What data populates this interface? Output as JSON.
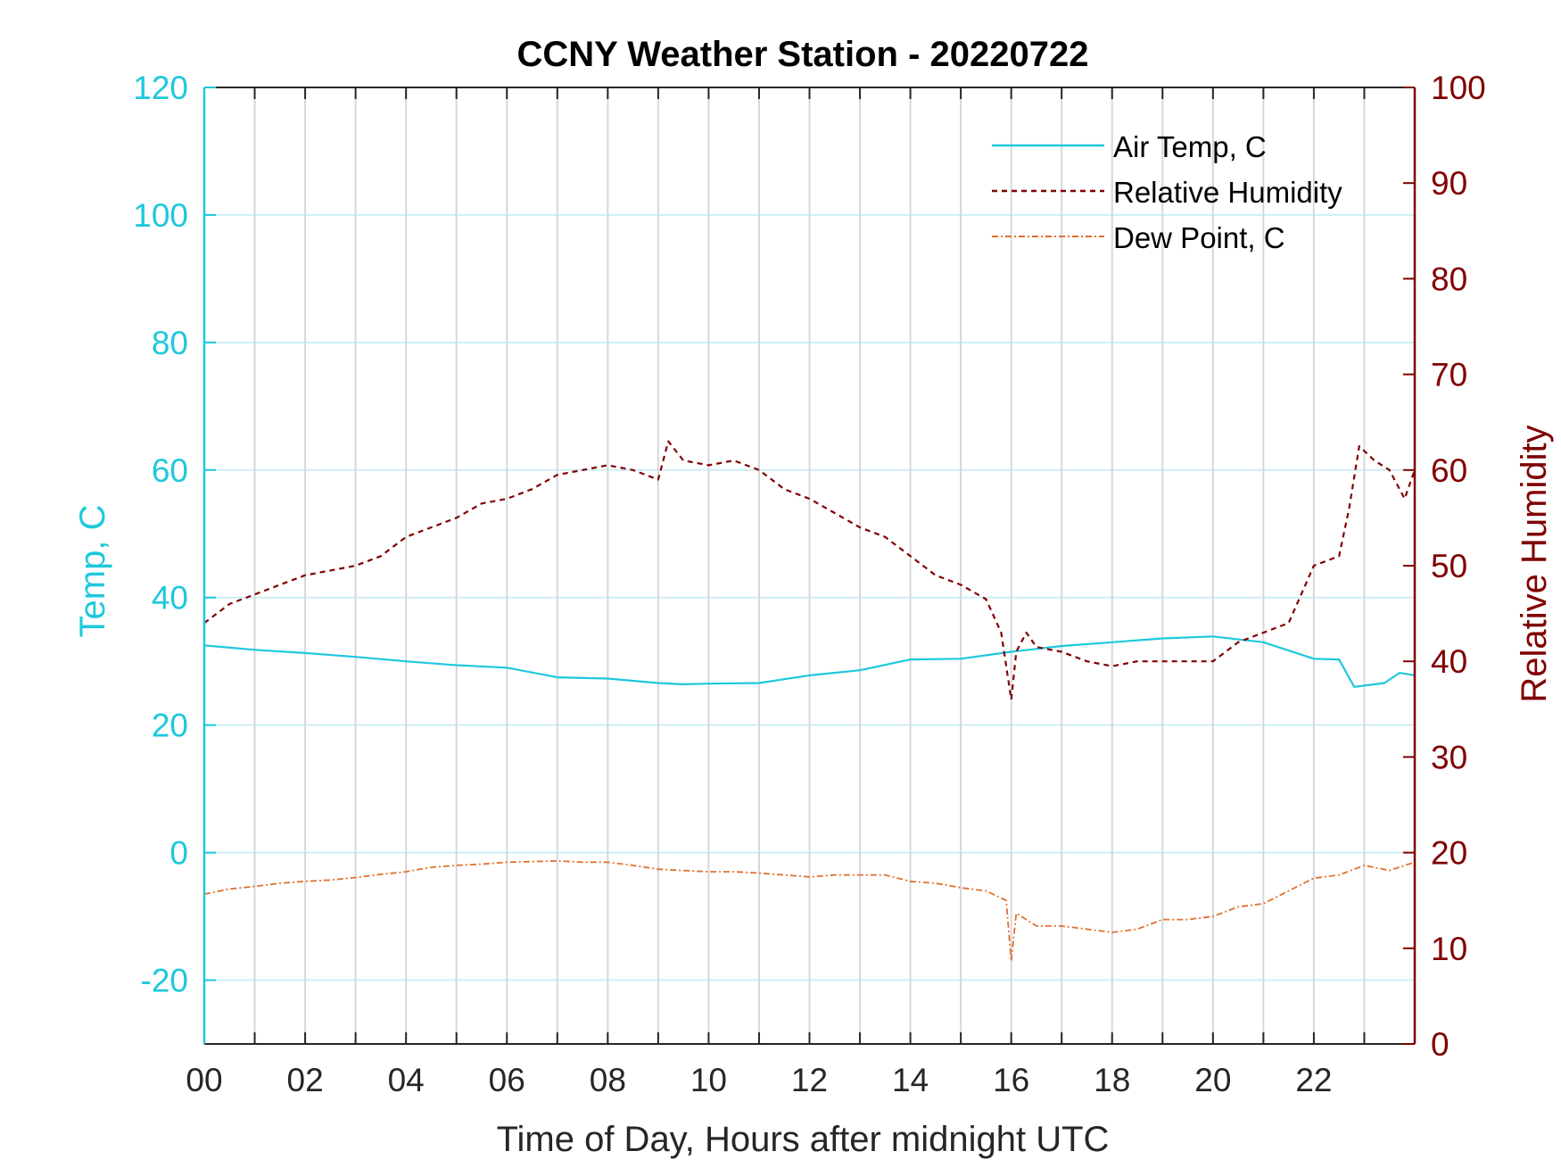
{
  "chart_data": {
    "type": "line",
    "title": "CCNY Weather Station - 20220722",
    "xlabel": "Time of Day, Hours after midnight UTC",
    "ylabel_left": "Temp, C",
    "ylabel_right": "Relative Humidity",
    "xlim": [
      0,
      24
    ],
    "ylim_left": [
      -30,
      120
    ],
    "ylim_right": [
      0,
      100
    ],
    "x_ticks": [
      0,
      2,
      4,
      6,
      8,
      10,
      12,
      14,
      16,
      18,
      20,
      22
    ],
    "x_tick_labels": [
      "00",
      "02",
      "04",
      "06",
      "08",
      "10",
      "12",
      "14",
      "16",
      "18",
      "20",
      "22"
    ],
    "y_left_ticks": [
      -20,
      0,
      20,
      40,
      60,
      80,
      100,
      120
    ],
    "y_left_tick_labels": [
      "-20",
      "0",
      "20",
      "40",
      "60",
      "80",
      "100",
      "120"
    ],
    "y_right_ticks": [
      0,
      10,
      20,
      30,
      40,
      50,
      60,
      70,
      80,
      90,
      100
    ],
    "y_right_tick_labels": [
      "0",
      "10",
      "20",
      "30",
      "40",
      "50",
      "60",
      "70",
      "80",
      "90",
      "100"
    ],
    "grid": true,
    "legend_position": "top-right",
    "colors": {
      "temp_axis": "#1ec8dc",
      "rh_axis": "#800000",
      "air_temp": "#1ec8dc",
      "rel_humidity": "#800000",
      "dew_point": "#e07030",
      "v_grid": "#d4d8dc",
      "h_grid": "#cdeff4"
    },
    "series": [
      {
        "name": "Air Temp, C",
        "axis": "left",
        "style": "solid",
        "x": [
          0,
          1,
          2,
          3,
          4,
          5,
          6,
          7,
          8,
          9,
          9.5,
          10,
          11,
          12,
          13,
          14,
          15,
          16,
          17,
          18,
          19,
          20,
          21,
          22,
          22.5,
          22.8,
          23,
          23.4,
          23.7,
          24
        ],
        "values": [
          32.5,
          31.8,
          31.3,
          30.7,
          30.0,
          29.4,
          29.0,
          27.5,
          27.3,
          26.6,
          26.4,
          26.5,
          26.6,
          27.8,
          28.6,
          30.3,
          30.4,
          31.5,
          32.4,
          33.0,
          33.6,
          33.9,
          33.0,
          30.4,
          30.3,
          26.0,
          26.2,
          26.6,
          28.2,
          27.8
        ]
      },
      {
        "name": "Relative Humidity",
        "axis": "right",
        "style": "dashed",
        "x": [
          0,
          0.5,
          1,
          1.5,
          2,
          2.5,
          3,
          3.5,
          4,
          4.5,
          5,
          5.5,
          6,
          6.5,
          7,
          7.5,
          8,
          8.5,
          9,
          9.2,
          9.5,
          10,
          10.5,
          11,
          11.5,
          12,
          12.5,
          13,
          13.5,
          14,
          14.5,
          15,
          15.5,
          15.8,
          16,
          16.1,
          16.3,
          16.5,
          17,
          17.5,
          18,
          18.5,
          19,
          19.5,
          20,
          20.5,
          21,
          21.5,
          22,
          22.5,
          22.7,
          22.9,
          23.2,
          23.5,
          23.8,
          24
        ],
        "values": [
          44,
          46,
          47,
          48,
          49,
          49.5,
          50,
          51,
          53,
          54,
          55,
          56.5,
          57,
          58,
          59.5,
          60,
          60.5,
          60,
          59,
          63,
          61,
          60.5,
          61,
          60,
          58,
          57,
          55.5,
          54,
          53,
          51,
          49,
          48,
          46.5,
          43,
          36,
          41,
          43,
          41.5,
          41,
          40,
          39.5,
          40,
          40,
          40,
          40,
          42,
          43,
          44,
          50,
          51,
          56,
          62.5,
          61,
          60,
          57,
          60
        ]
      },
      {
        "name": "Dew Point, C",
        "axis": "left",
        "style": "dashdot",
        "x": [
          0,
          0.5,
          1,
          1.5,
          2,
          2.5,
          3,
          3.5,
          4,
          4.5,
          5,
          5.5,
          6,
          6.5,
          7,
          7.5,
          8,
          8.5,
          9,
          9.5,
          10,
          10.5,
          11,
          11.5,
          12,
          12.5,
          13,
          13.5,
          14,
          14.5,
          15,
          15.5,
          15.9,
          16,
          16.1,
          16.3,
          16.5,
          17,
          17.5,
          18,
          18.5,
          19,
          19.5,
          20,
          20.5,
          21,
          21.5,
          22,
          22.5,
          23,
          23.5,
          24
        ],
        "values": [
          -6.5,
          -5.7,
          -5.3,
          -4.8,
          -4.5,
          -4.3,
          -3.9,
          -3.4,
          -3.0,
          -2.3,
          -2.0,
          -1.8,
          -1.5,
          -1.4,
          -1.3,
          -1.5,
          -1.5,
          -2.0,
          -2.6,
          -2.8,
          -3.0,
          -3.0,
          -3.2,
          -3.5,
          -3.8,
          -3.5,
          -3.5,
          -3.5,
          -4.5,
          -4.8,
          -5.5,
          -6.0,
          -7.5,
          -17,
          -9.5,
          -10.5,
          -11.5,
          -11.5,
          -12.0,
          -12.5,
          -12.0,
          -10.5,
          -10.5,
          -10.0,
          -8.5,
          -8.0,
          -6.0,
          -4.0,
          -3.5,
          -2.0,
          -2.8,
          -1.5
        ]
      }
    ]
  }
}
